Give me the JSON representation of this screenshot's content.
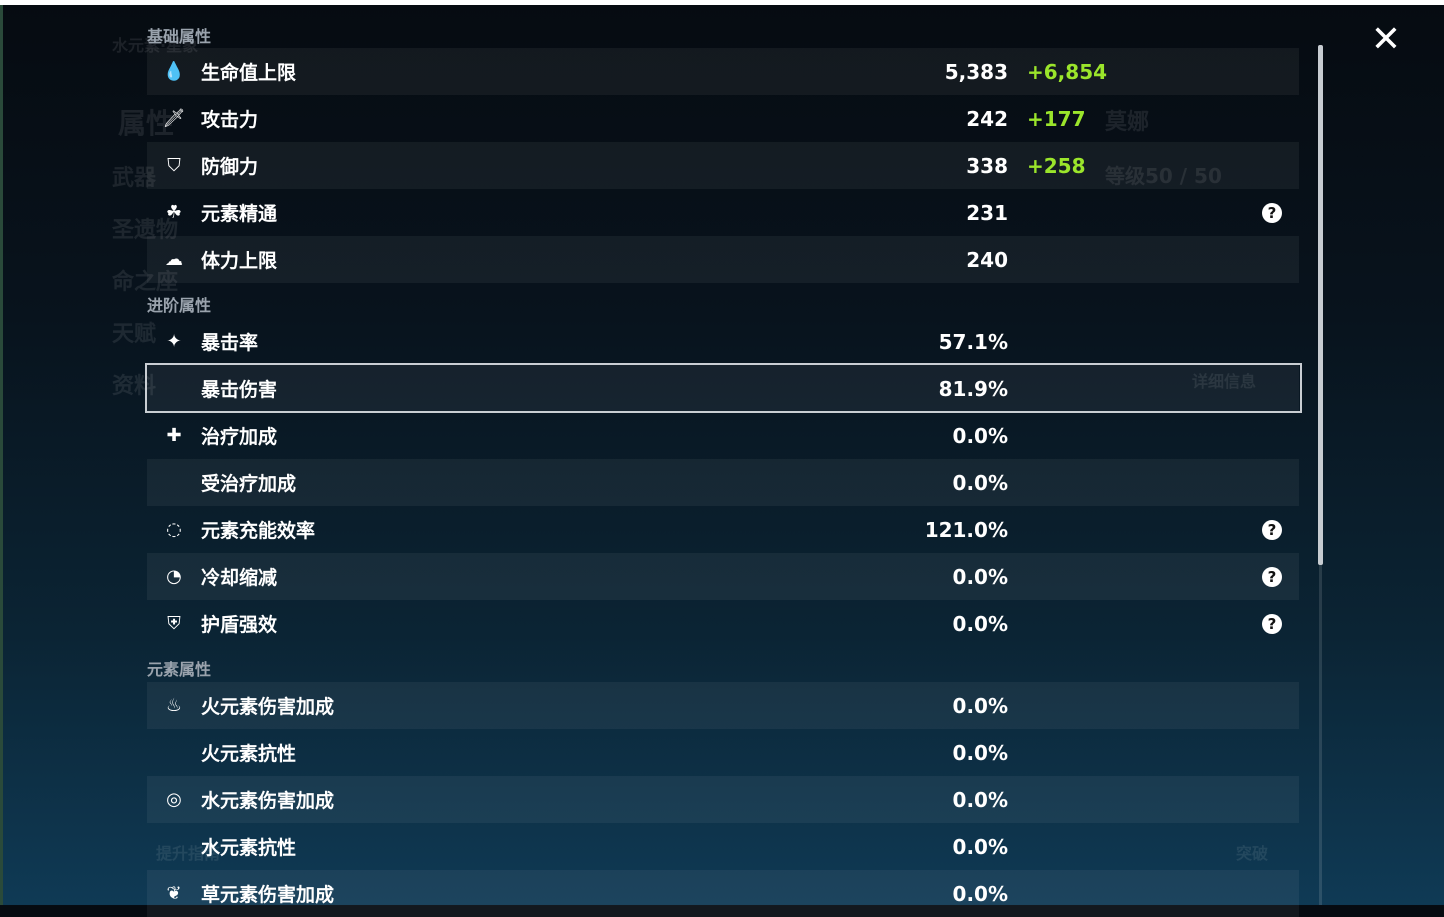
{
  "background": {
    "element_title": "水元素·星象",
    "menu": [
      "属性",
      "武器",
      "圣遗物",
      "命之座",
      "天赋",
      "资料"
    ],
    "character_name": "莫娜",
    "level": "等级50 / 50",
    "details_button": "详细信息",
    "breakthrough_button": "突破",
    "guide_button": "提升指南"
  },
  "sections": {
    "base": "基础属性",
    "advanced": "进阶属性",
    "element": "元素属性"
  },
  "base_stats": [
    {
      "icon": "hp-drop-icon",
      "label": "生命值上限",
      "value": "5,383",
      "bonus": "+6,854"
    },
    {
      "icon": "sword-icon",
      "label": "攻击力",
      "value": "242",
      "bonus": "+177"
    },
    {
      "icon": "shield-icon",
      "label": "防御力",
      "value": "338",
      "bonus": "+258"
    },
    {
      "icon": "elemental-mastery-icon",
      "label": "元素精通",
      "value": "231",
      "help": true
    },
    {
      "icon": "stamina-icon",
      "label": "体力上限",
      "value": "240"
    }
  ],
  "advanced_stats": [
    {
      "icon": "crit-rate-icon",
      "label": "暴击率",
      "value": "57.1%"
    },
    {
      "icon": "",
      "label": "暴击伤害",
      "value": "81.9%",
      "selected": true
    },
    {
      "icon": "healing-cross-icon",
      "label": "治疗加成",
      "value": "0.0%"
    },
    {
      "icon": "",
      "label": "受治疗加成",
      "value": "0.0%"
    },
    {
      "icon": "energy-recharge-icon",
      "label": "元素充能效率",
      "value": "121.0%",
      "help": true
    },
    {
      "icon": "cooldown-icon",
      "label": "冷却缩减",
      "value": "0.0%",
      "help": true
    },
    {
      "icon": "shield-strength-icon",
      "label": "护盾强效",
      "value": "0.0%",
      "help": true
    }
  ],
  "element_stats": [
    {
      "icon": "pyro-icon",
      "label": "火元素伤害加成",
      "value": "0.0%"
    },
    {
      "icon": "",
      "label": "火元素抗性",
      "value": "0.0%"
    },
    {
      "icon": "hydro-icon",
      "label": "水元素伤害加成",
      "value": "0.0%"
    },
    {
      "icon": "",
      "label": "水元素抗性",
      "value": "0.0%"
    },
    {
      "icon": "dendro-icon",
      "label": "草元素伤害加成",
      "value": "0.0%"
    }
  ],
  "help_symbol": "?",
  "close_symbol": "✕",
  "colors": {
    "bonus": "#9be52b",
    "selected_border": "#c9ced3"
  }
}
